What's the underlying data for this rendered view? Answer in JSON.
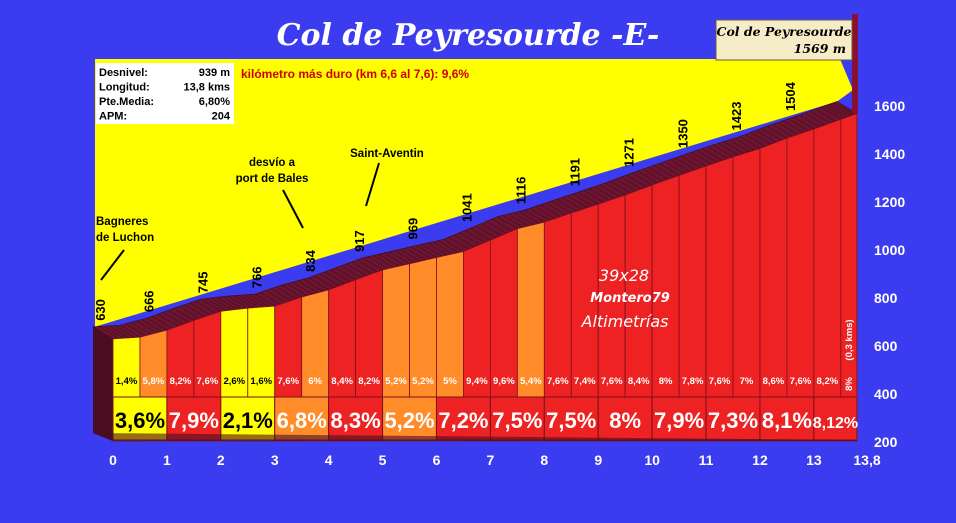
{
  "chart_data": {
    "type": "area",
    "title": "Col de Peyresourde -E-",
    "x_ticks": [
      "0",
      "1",
      "2",
      "3",
      "4",
      "5",
      "6",
      "7",
      "8",
      "9",
      "10",
      "11",
      "12",
      "13",
      "13,8"
    ],
    "y_ticks": [
      "200",
      "400",
      "600",
      "800",
      "1000",
      "1200",
      "1400",
      "1600"
    ],
    "xlim": [
      0,
      13.8
    ],
    "ylim": [
      200,
      1600
    ],
    "summit": {
      "name": "Col de Peyresourde",
      "altitude": "1569 m",
      "x": 13.8,
      "y": 1569
    },
    "stats": {
      "rows": [
        {
          "label": "Desnivel:",
          "value": "939 m"
        },
        {
          "label": "Longitud:",
          "value": "13,8 kms"
        },
        {
          "label": "Pte.Media:",
          "value": "6,80%"
        },
        {
          "label": "APM:",
          "value": "204"
        }
      ]
    },
    "hardest_km": "kilómetro más duro (km 6,6 al 7,6):  9,6%",
    "annotations": [
      {
        "text": [
          "Bagneres",
          "de Luchon"
        ],
        "x": 0
      },
      {
        "text": [
          "desvío a",
          "port de Bales"
        ],
        "x": 3.6
      },
      {
        "text": [
          "Saint-Aventin"
        ],
        "x": 4.7
      }
    ],
    "watermark": [
      "39x28",
      "Montero79",
      "Altimetrías"
    ],
    "elevation_labels": [
      {
        "x": 0,
        "y": 630,
        "label": "630"
      },
      {
        "x": 0.9,
        "y": 666,
        "label": "666"
      },
      {
        "x": 1.9,
        "y": 745,
        "label": "745"
      },
      {
        "x": 2.9,
        "y": 766,
        "label": "766"
      },
      {
        "x": 3.9,
        "y": 834,
        "label": "834"
      },
      {
        "x": 4.8,
        "y": 917,
        "label": "917"
      },
      {
        "x": 5.8,
        "y": 969,
        "label": "969"
      },
      {
        "x": 6.8,
        "y": 1041,
        "label": "1041"
      },
      {
        "x": 7.8,
        "y": 1116,
        "label": "1116"
      },
      {
        "x": 8.8,
        "y": 1191,
        "label": "1191"
      },
      {
        "x": 9.8,
        "y": 1271,
        "label": "1271"
      },
      {
        "x": 10.8,
        "y": 1350,
        "label": "1350"
      },
      {
        "x": 11.8,
        "y": 1423,
        "label": "1423"
      },
      {
        "x": 12.8,
        "y": 1504,
        "label": "1504"
      }
    ],
    "segments": [
      {
        "x0": 0.0,
        "x1": 0.5,
        "y0": 630,
        "y1": 637,
        "grade": "1,4%",
        "color": "#ffff00"
      },
      {
        "x0": 0.5,
        "x1": 1.0,
        "y0": 637,
        "y1": 666,
        "grade": "5,8%",
        "color": "#ff8c28"
      },
      {
        "x0": 1.0,
        "x1": 1.5,
        "y0": 666,
        "y1": 707,
        "grade": "8,2%",
        "color": "#ee2222"
      },
      {
        "x0": 1.5,
        "x1": 2.0,
        "y0": 707,
        "y1": 745,
        "grade": "7,6%",
        "color": "#ee2222"
      },
      {
        "x0": 2.0,
        "x1": 2.5,
        "y0": 745,
        "y1": 758,
        "grade": "2,6%",
        "color": "#ffff00"
      },
      {
        "x0": 2.5,
        "x1": 3.0,
        "y0": 758,
        "y1": 766,
        "grade": "1,6%",
        "color": "#ffff00"
      },
      {
        "x0": 3.0,
        "x1": 3.5,
        "y0": 766,
        "y1": 804,
        "grade": "7,6%",
        "color": "#ee2222"
      },
      {
        "x0": 3.5,
        "x1": 4.0,
        "y0": 804,
        "y1": 834,
        "grade": "6%",
        "color": "#ff8c28"
      },
      {
        "x0": 4.0,
        "x1": 4.5,
        "y0": 834,
        "y1": 876,
        "grade": "8,4%",
        "color": "#ee2222"
      },
      {
        "x0": 4.5,
        "x1": 5.0,
        "y0": 876,
        "y1": 917,
        "grade": "8,2%",
        "color": "#ee2222"
      },
      {
        "x0": 5.0,
        "x1": 5.5,
        "y0": 917,
        "y1": 943,
        "grade": "5,2%",
        "color": "#ff8c28"
      },
      {
        "x0": 5.5,
        "x1": 6.0,
        "y0": 943,
        "y1": 969,
        "grade": "5,2%",
        "color": "#ff8c28"
      },
      {
        "x0": 6.0,
        "x1": 6.5,
        "y0": 969,
        "y1": 994,
        "grade": "5%",
        "color": "#ff8c28"
      },
      {
        "x0": 6.5,
        "x1": 7.0,
        "y0": 994,
        "y1": 1041,
        "grade": "9,4%",
        "color": "#ee2222"
      },
      {
        "x0": 7.0,
        "x1": 7.5,
        "y0": 1041,
        "y1": 1089,
        "grade": "9,6%",
        "color": "#ee2222"
      },
      {
        "x0": 7.5,
        "x1": 8.0,
        "y0": 1089,
        "y1": 1116,
        "grade": "5,4%",
        "color": "#ff8c28"
      },
      {
        "x0": 8.0,
        "x1": 8.5,
        "y0": 1116,
        "y1": 1154,
        "grade": "7,6%",
        "color": "#ee2222"
      },
      {
        "x0": 8.5,
        "x1": 9.0,
        "y0": 1154,
        "y1": 1191,
        "grade": "7,4%",
        "color": "#ee2222"
      },
      {
        "x0": 9.0,
        "x1": 9.5,
        "y0": 1191,
        "y1": 1229,
        "grade": "7,6%",
        "color": "#ee2222"
      },
      {
        "x0": 9.5,
        "x1": 10.0,
        "y0": 1229,
        "y1": 1271,
        "grade": "8,4%",
        "color": "#ee2222"
      },
      {
        "x0": 10.0,
        "x1": 10.5,
        "y0": 1271,
        "y1": 1311,
        "grade": "8%",
        "color": "#ee2222"
      },
      {
        "x0": 10.5,
        "x1": 11.0,
        "y0": 1311,
        "y1": 1350,
        "grade": "7,8%",
        "color": "#ee2222"
      },
      {
        "x0": 11.0,
        "x1": 11.5,
        "y0": 1350,
        "y1": 1388,
        "grade": "7,6%",
        "color": "#ee2222"
      },
      {
        "x0": 11.5,
        "x1": 12.0,
        "y0": 1388,
        "y1": 1423,
        "grade": "7%",
        "color": "#ee2222"
      },
      {
        "x0": 12.0,
        "x1": 12.5,
        "y0": 1423,
        "y1": 1466,
        "grade": "8,6%",
        "color": "#ee2222"
      },
      {
        "x0": 12.5,
        "x1": 13.0,
        "y0": 1466,
        "y1": 1504,
        "grade": "7,6%",
        "color": "#ee2222"
      },
      {
        "x0": 13.0,
        "x1": 13.5,
        "y0": 1504,
        "y1": 1545,
        "grade": "8,2%",
        "color": "#ee2222"
      },
      {
        "x0": 13.5,
        "x1": 13.8,
        "y0": 1545,
        "y1": 1569,
        "grade": "8%",
        "color": "#ee2222"
      }
    ],
    "last_segment_note": "(0,3 kms)",
    "km_grades": [
      {
        "x0": 0,
        "x1": 1,
        "grade": "3,6%",
        "color": "#ffff00",
        "text_color": "#000000"
      },
      {
        "x0": 1,
        "x1": 2,
        "grade": "7,9%",
        "color": "#ee2222",
        "text_color": "#ffffff"
      },
      {
        "x0": 2,
        "x1": 3,
        "grade": "2,1%",
        "color": "#ffff00",
        "text_color": "#000000"
      },
      {
        "x0": 3,
        "x1": 4,
        "grade": "6,8%",
        "color": "#ff8c28",
        "text_color": "#ffffff"
      },
      {
        "x0": 4,
        "x1": 5,
        "grade": "8,3%",
        "color": "#ee2222",
        "text_color": "#ffffff"
      },
      {
        "x0": 5,
        "x1": 6,
        "grade": "5,2%",
        "color": "#ff8c28",
        "text_color": "#ffffff"
      },
      {
        "x0": 6,
        "x1": 7,
        "grade": "7,2%",
        "color": "#ee2222",
        "text_color": "#ffffff"
      },
      {
        "x0": 7,
        "x1": 8,
        "grade": "7,5%",
        "color": "#ee2222",
        "text_color": "#ffffff"
      },
      {
        "x0": 8,
        "x1": 9,
        "grade": "7,5%",
        "color": "#ee2222",
        "text_color": "#ffffff"
      },
      {
        "x0": 9,
        "x1": 10,
        "grade": "8%",
        "color": "#ee2222",
        "text_color": "#ffffff"
      },
      {
        "x0": 10,
        "x1": 11,
        "grade": "7,9%",
        "color": "#ee2222",
        "text_color": "#ffffff"
      },
      {
        "x0": 11,
        "x1": 12,
        "grade": "7,3%",
        "color": "#ee2222",
        "text_color": "#ffffff"
      },
      {
        "x0": 12,
        "x1": 13,
        "grade": "8,1%",
        "color": "#ee2222",
        "text_color": "#ffffff"
      },
      {
        "x0": 13,
        "x1": 13.8,
        "grade": "8,12%",
        "color": "#ee2222",
        "text_color": "#ffffff"
      }
    ],
    "colors": {
      "background": "#3b3bef",
      "panel": "#ffff00",
      "road": "#6b1530",
      "road_dark": "#4a0d22"
    },
    "grid": false
  }
}
